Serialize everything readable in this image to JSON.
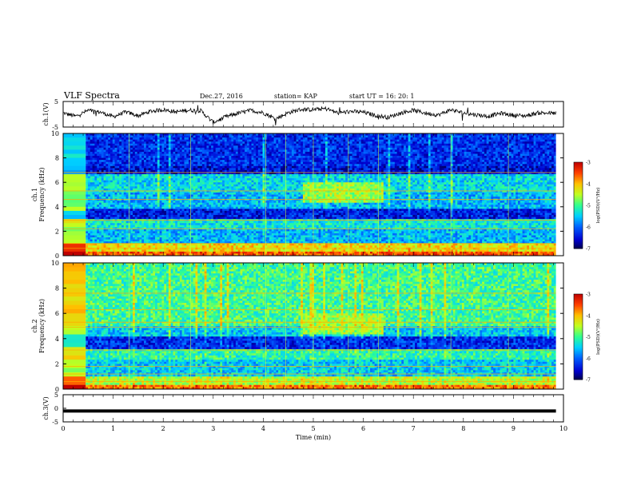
{
  "header": {
    "title": "VLF Spectra",
    "date": "Dec.27, 2016",
    "station": "station= KAP",
    "start": "start  UT =   16: 20: 1"
  },
  "colorbar": {
    "label": "log(PSD)(V²/Hz)",
    "ticks": [
      -3,
      -4,
      -5,
      -6,
      -7
    ],
    "colors": [
      "#ffffff",
      "#ff0000",
      "#ffa500",
      "#ffff00",
      "#00ff00",
      "#00ffff",
      "#0088ff",
      "#0000ff",
      "#000080",
      "#000000"
    ]
  },
  "chart_data": [
    {
      "type": "line",
      "name": "ch1-waveform",
      "ylabel": "ch.1(V)",
      "ylim": [
        -5,
        5
      ],
      "yticks": [
        5,
        -5
      ],
      "xlim": [
        0,
        10
      ],
      "x_end": 9.85,
      "approx_values_sample_every_0.25min": [
        0.5,
        -0.8,
        1.5,
        0.8,
        -1.0,
        0.9,
        -0.6,
        1.2,
        1.8,
        0.9,
        1.6,
        1.4,
        -3.2,
        -1.0,
        0.4,
        1.5,
        0.6,
        -1.8,
        0.6,
        1.9,
        1.8,
        2.2,
        0.5,
        1.1,
        0.8,
        -0.5,
        -1.2,
        0.5,
        1.6,
        0.4,
        -0.3,
        1.8,
        0.5,
        -0.2,
        -0.8,
        0.4,
        -0.4,
        -0.6,
        0.6,
        0.4
      ]
    },
    {
      "type": "heatmap",
      "name": "ch1-spectrogram",
      "ylabel": "ch.1\nFrequency (kHz)",
      "xlim": [
        0,
        10
      ],
      "ylim": [
        0,
        10
      ],
      "yticks": [
        0,
        2,
        4,
        6,
        8,
        10
      ],
      "x_end": 9.85,
      "gap_until": 0.45,
      "color_range_log_psd": [
        -7,
        -3
      ],
      "description_levels": "strong bands near 0.5-1 kHz (red/orange); mid levels -5 near 2-6 kHz; dark blue above 7 kHz; chorus-like emission ~4.5-6 kHz between 4.8 and 6.4 min"
    },
    {
      "type": "heatmap",
      "name": "ch2-spectrogram",
      "ylabel": "ch.2\nFrequency (kHz)",
      "xlim": [
        0,
        10
      ],
      "ylim": [
        0,
        10
      ],
      "yticks": [
        0,
        2,
        4,
        6,
        8,
        10
      ],
      "x_end": 9.85,
      "gap_until": 0.45,
      "color_range_log_psd": [
        -7,
        -3
      ],
      "description_levels": "green/cyan dominated above 5 kHz; dark blue band near 4 kHz; emission ~4.5-6 kHz between 4.8 and 6.4 min"
    },
    {
      "type": "line",
      "name": "ch3-waveform",
      "ylabel": "ch.3(V)",
      "ylim": [
        -5,
        5
      ],
      "yticks": [
        5,
        0,
        -5
      ],
      "xlim": [
        0,
        10
      ],
      "values_constant": -1,
      "xlabel": "Time  (min)",
      "xticks": [
        0,
        1,
        2,
        3,
        4,
        5,
        6,
        7,
        8,
        9,
        10
      ]
    }
  ]
}
